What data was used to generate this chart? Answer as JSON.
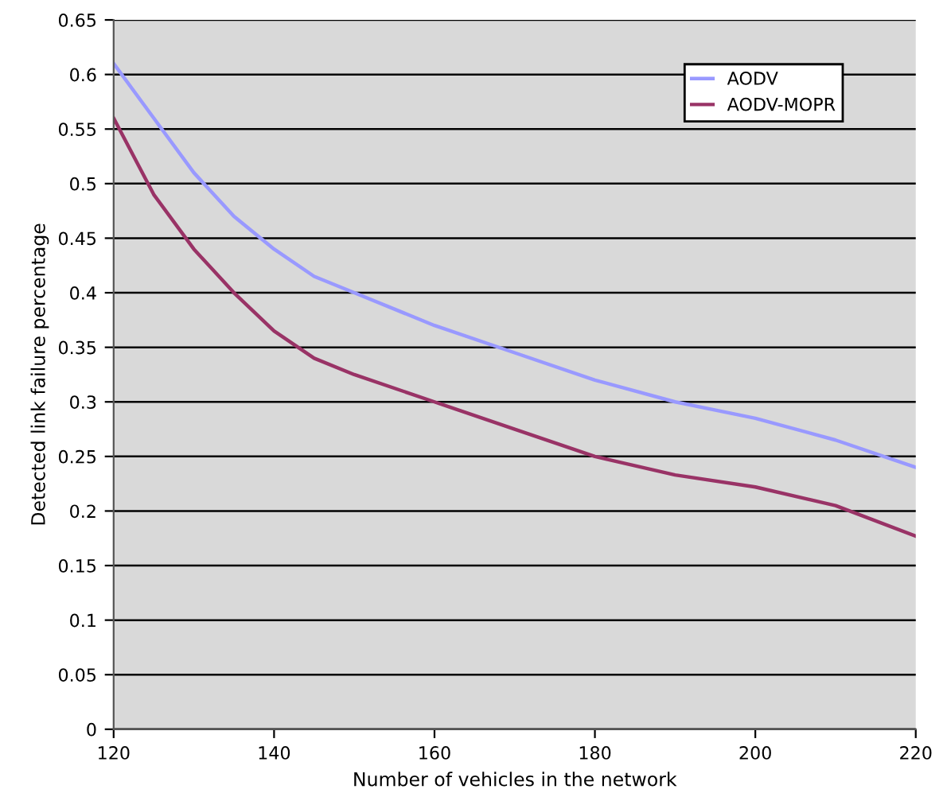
{
  "chart_data": {
    "type": "line",
    "xlabel": "Number of vehicles in the network",
    "ylabel": "Detected link failure percentage",
    "x": [
      120,
      125,
      130,
      135,
      140,
      145,
      150,
      160,
      170,
      180,
      190,
      200,
      210,
      220
    ],
    "series": [
      {
        "name": "AODV",
        "color": "#9999ff",
        "values": [
          0.61,
          0.56,
          0.51,
          0.47,
          0.44,
          0.415,
          0.4,
          0.37,
          0.345,
          0.32,
          0.3,
          0.285,
          0.265,
          0.24
        ]
      },
      {
        "name": "AODV-MOPR",
        "color": "#993366",
        "values": [
          0.56,
          0.49,
          0.44,
          0.4,
          0.365,
          0.34,
          0.325,
          0.3,
          0.275,
          0.25,
          0.233,
          0.222,
          0.205,
          0.177
        ]
      }
    ],
    "xlim": [
      120,
      220
    ],
    "xticks": [
      120,
      140,
      160,
      180,
      200,
      220
    ],
    "ylim": [
      0,
      0.65
    ],
    "yticks": [
      0,
      0.05,
      0.1,
      0.15,
      0.2,
      0.25,
      0.3,
      0.35,
      0.4,
      0.45,
      0.5,
      0.55,
      0.6,
      0.65
    ],
    "grid": "y",
    "legend": "top right",
    "marker": "none",
    "line_style": "solid"
  }
}
